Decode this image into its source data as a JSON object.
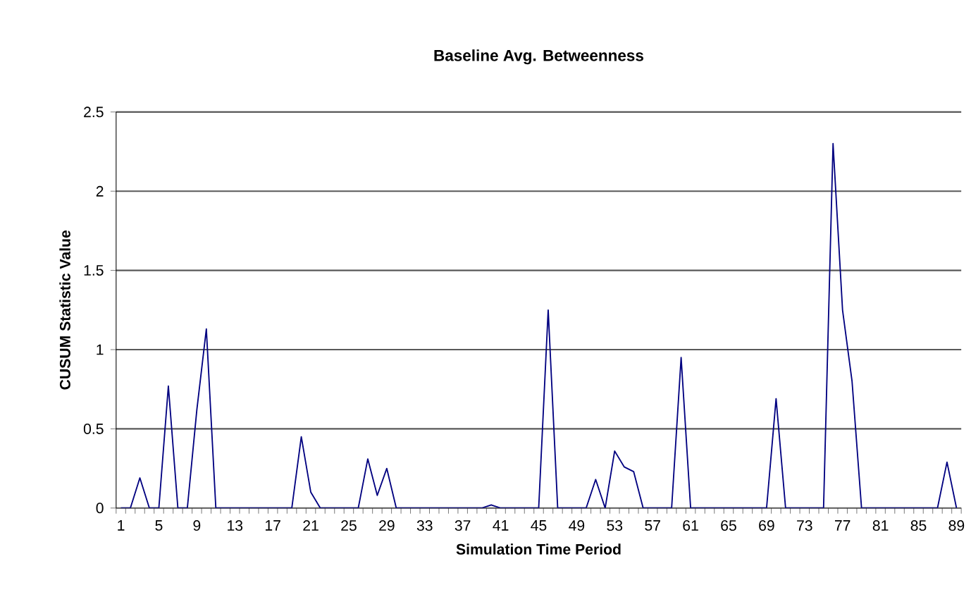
{
  "chart_data": {
    "type": "line",
    "title": "Baseline Avg. Betweenness",
    "xlabel": "Simulation Time Period",
    "ylabel": "CUSUM Statistic Value",
    "categories": [
      "1",
      null,
      null,
      null,
      "5",
      null,
      null,
      null,
      "9",
      null,
      null,
      null,
      "13",
      null,
      null,
      null,
      "17",
      null,
      null,
      null,
      "21",
      null,
      null,
      null,
      "25",
      null,
      null,
      null,
      "29",
      null,
      null,
      null,
      "33",
      null,
      null,
      null,
      "37",
      null,
      null,
      null,
      "41",
      null,
      null,
      null,
      "45",
      null,
      null,
      null,
      "49",
      null,
      null,
      null,
      "53",
      null,
      null,
      null,
      "57",
      null,
      null,
      null,
      "61",
      null,
      null,
      null,
      "65",
      null,
      null,
      null,
      "69",
      null,
      null,
      null,
      "73",
      null,
      null,
      null,
      "77",
      null,
      null,
      null,
      "81",
      null,
      null,
      null,
      "85",
      null,
      null,
      null,
      "89"
    ],
    "values": [
      0,
      0,
      0.19,
      0,
      0,
      0.77,
      0,
      0,
      0.62,
      1.13,
      0,
      0,
      0,
      0,
      0,
      0,
      0,
      0,
      0,
      0.45,
      0.1,
      0,
      0,
      0,
      0,
      0,
      0.31,
      0.08,
      0.25,
      0,
      0,
      0,
      0,
      0,
      0,
      0,
      0,
      0,
      0,
      0.02,
      0,
      0,
      0,
      0,
      0,
      1.25,
      0,
      0,
      0,
      0,
      0.18,
      0,
      0.36,
      0.26,
      0.23,
      0,
      0,
      0,
      0,
      0.95,
      0,
      0,
      0,
      0,
      0,
      0,
      0,
      0,
      0,
      0.69,
      0,
      0,
      0,
      0,
      0,
      2.3,
      1.25,
      0.8,
      0,
      0,
      0,
      0,
      0,
      0,
      0,
      0,
      0,
      0.29,
      0
    ],
    "color": "#000080",
    "ylim": [
      0,
      2.5
    ],
    "yticks": [
      0,
      0.5,
      1,
      1.5,
      2,
      2.5
    ],
    "grid": "y"
  }
}
